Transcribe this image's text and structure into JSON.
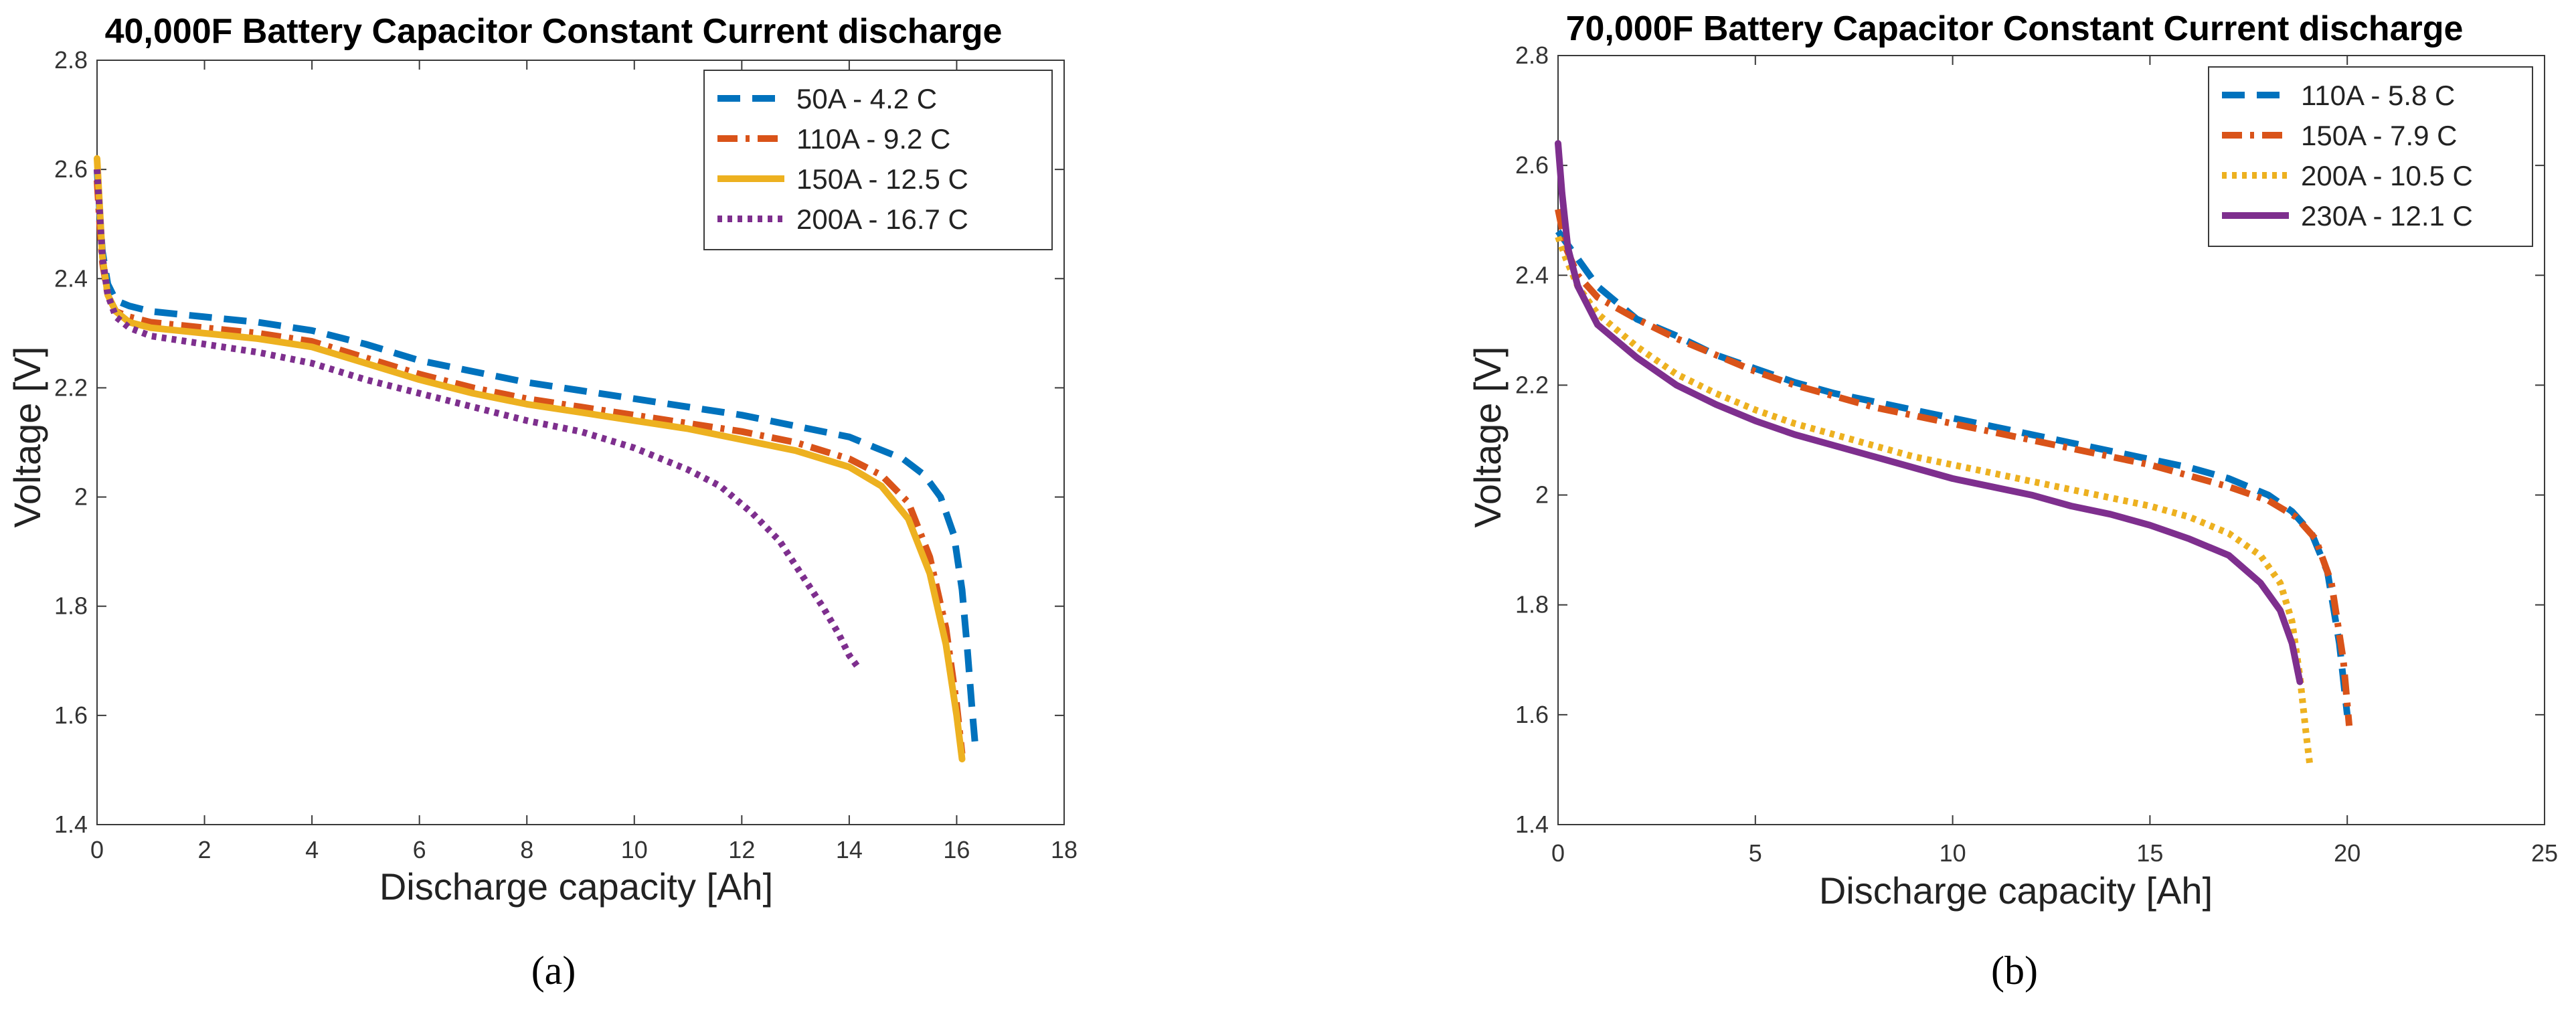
{
  "chart_data": [
    {
      "type": "line",
      "panel_label": "(a)",
      "title": "40,000F Battery Capacitor Constant Current discharge",
      "xlabel": "Discharge capacity [Ah]",
      "ylabel": "Voltage [V]",
      "xlim": [
        0,
        18
      ],
      "ylim": [
        1.4,
        2.8
      ],
      "xticks": [
        0,
        2,
        4,
        6,
        8,
        10,
        12,
        14,
        16,
        18
      ],
      "yticks": [
        1.4,
        1.6,
        1.8,
        2,
        2.2,
        2.4,
        2.6,
        2.8
      ],
      "grid": false,
      "legend_position": "top-right",
      "series": [
        {
          "name": "50A - 4.2 C",
          "color": "#0072BD",
          "style": "dashed",
          "x": [
            0,
            0.05,
            0.1,
            0.2,
            0.35,
            0.6,
            1,
            2,
            3,
            4,
            5,
            6,
            7,
            8,
            9,
            10,
            11,
            12,
            13,
            14,
            14.5,
            15,
            15.4,
            15.7,
            15.95,
            16.1,
            16.2,
            16.28,
            16.35
          ],
          "y": [
            2.6,
            2.52,
            2.45,
            2.39,
            2.36,
            2.35,
            2.34,
            2.33,
            2.32,
            2.305,
            2.28,
            2.25,
            2.23,
            2.21,
            2.195,
            2.18,
            2.165,
            2.15,
            2.13,
            2.11,
            2.09,
            2.07,
            2.04,
            2.0,
            1.93,
            1.83,
            1.72,
            1.62,
            1.54
          ]
        },
        {
          "name": "110A - 9.2 C",
          "color": "#D95319",
          "style": "dashdot",
          "x": [
            0,
            0.05,
            0.1,
            0.2,
            0.35,
            0.6,
            1,
            2,
            3,
            4,
            5,
            6,
            7,
            8,
            9,
            10,
            11,
            12,
            13,
            14,
            14.6,
            15.1,
            15.5,
            15.8,
            16.0,
            16.1
          ],
          "y": [
            2.58,
            2.5,
            2.43,
            2.37,
            2.34,
            2.33,
            2.32,
            2.31,
            2.3,
            2.285,
            2.255,
            2.225,
            2.2,
            2.18,
            2.165,
            2.15,
            2.135,
            2.12,
            2.1,
            2.07,
            2.04,
            1.99,
            1.89,
            1.76,
            1.62,
            1.53
          ]
        },
        {
          "name": "150A - 12.5 C",
          "color": "#EDB120",
          "style": "solid",
          "x": [
            0,
            0.05,
            0.1,
            0.2,
            0.35,
            0.6,
            1,
            2,
            3,
            4,
            5,
            6,
            7,
            8,
            9,
            10,
            11,
            12,
            13,
            14,
            14.6,
            15.1,
            15.5,
            15.8,
            16.0,
            16.1
          ],
          "y": [
            2.62,
            2.53,
            2.44,
            2.37,
            2.34,
            2.32,
            2.31,
            2.3,
            2.29,
            2.275,
            2.245,
            2.215,
            2.19,
            2.17,
            2.155,
            2.14,
            2.125,
            2.105,
            2.085,
            2.055,
            2.02,
            1.96,
            1.86,
            1.73,
            1.6,
            1.52
          ]
        },
        {
          "name": "200A - 16.7 C",
          "color": "#7E2F8E",
          "style": "dotted",
          "x": [
            0,
            0.05,
            0.1,
            0.2,
            0.35,
            0.6,
            1,
            2,
            3,
            4,
            5,
            6,
            7,
            8,
            9,
            10,
            11,
            11.6,
            12.2,
            12.7,
            13.1,
            13.5,
            13.8,
            14.0,
            14.15
          ],
          "y": [
            2.6,
            2.52,
            2.44,
            2.37,
            2.33,
            2.31,
            2.295,
            2.28,
            2.265,
            2.245,
            2.215,
            2.19,
            2.165,
            2.14,
            2.12,
            2.09,
            2.05,
            2.02,
            1.97,
            1.92,
            1.86,
            1.8,
            1.75,
            1.71,
            1.69
          ]
        }
      ]
    },
    {
      "type": "line",
      "panel_label": "(b)",
      "title": "70,000F Battery Capacitor Constant Current discharge",
      "xlabel": "Discharge capacity [Ah]",
      "ylabel": "Voltage [V]",
      "xlim": [
        0,
        25
      ],
      "ylim": [
        1.4,
        2.8
      ],
      "xticks": [
        0,
        5,
        10,
        15,
        20,
        25
      ],
      "yticks": [
        1.4,
        1.6,
        1.8,
        2,
        2.2,
        2.4,
        2.6,
        2.8
      ],
      "grid": false,
      "legend_position": "top-right",
      "series": [
        {
          "name": "110A - 5.8 C",
          "color": "#0072BD",
          "style": "dashed",
          "x": [
            0,
            0.2,
            0.5,
            1,
            2,
            3,
            4,
            5,
            6,
            7,
            8,
            9,
            10,
            11,
            12,
            13,
            14,
            15,
            16,
            17,
            18,
            18.6,
            19.1,
            19.5,
            19.8,
            20.0
          ],
          "y": [
            2.48,
            2.46,
            2.43,
            2.38,
            2.32,
            2.29,
            2.255,
            2.23,
            2.205,
            2.185,
            2.17,
            2.155,
            2.14,
            2.125,
            2.11,
            2.095,
            2.08,
            2.065,
            2.05,
            2.03,
            2.0,
            1.97,
            1.93,
            1.86,
            1.73,
            1.6
          ]
        },
        {
          "name": "150A - 7.9 C",
          "color": "#D95319",
          "style": "dashdot",
          "x": [
            0,
            0.2,
            0.5,
            1,
            2,
            3,
            4,
            5,
            6,
            7,
            8,
            9,
            10,
            11,
            12,
            13,
            14,
            15,
            16,
            17,
            18,
            18.7,
            19.2,
            19.6,
            19.9,
            20.05
          ],
          "y": [
            2.52,
            2.45,
            2.4,
            2.36,
            2.32,
            2.285,
            2.255,
            2.225,
            2.2,
            2.18,
            2.16,
            2.145,
            2.13,
            2.115,
            2.1,
            2.085,
            2.07,
            2.055,
            2.035,
            2.015,
            1.99,
            1.96,
            1.92,
            1.84,
            1.7,
            1.58
          ]
        },
        {
          "name": "200A - 10.5 C",
          "color": "#EDB120",
          "style": "dotted",
          "x": [
            0,
            0.2,
            0.5,
            1,
            2,
            3,
            4,
            5,
            6,
            7,
            8,
            9,
            10,
            11,
            12,
            13,
            14,
            15,
            16,
            17,
            17.8,
            18.3,
            18.6,
            18.8,
            18.95,
            19.05
          ],
          "y": [
            2.47,
            2.43,
            2.38,
            2.33,
            2.27,
            2.22,
            2.185,
            2.155,
            2.13,
            2.11,
            2.09,
            2.07,
            2.055,
            2.04,
            2.025,
            2.01,
            1.995,
            1.98,
            1.96,
            1.93,
            1.89,
            1.84,
            1.77,
            1.67,
            1.57,
            1.51
          ]
        },
        {
          "name": "230A - 12.1 C",
          "color": "#7E2F8E",
          "style": "solid",
          "x": [
            0,
            0.1,
            0.25,
            0.5,
            1,
            2,
            3,
            4,
            5,
            6,
            7,
            8,
            9,
            10,
            11,
            12,
            13,
            14,
            15,
            16,
            17,
            17.8,
            18.3,
            18.6,
            18.8
          ],
          "y": [
            2.64,
            2.55,
            2.45,
            2.38,
            2.31,
            2.25,
            2.2,
            2.165,
            2.135,
            2.11,
            2.09,
            2.07,
            2.05,
            2.03,
            2.015,
            2.0,
            1.98,
            1.965,
            1.945,
            1.92,
            1.89,
            1.84,
            1.79,
            1.73,
            1.66
          ]
        }
      ]
    }
  ]
}
